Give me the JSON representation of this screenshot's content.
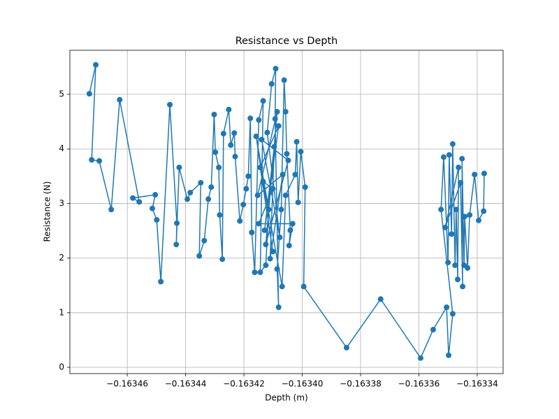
{
  "chart_data": {
    "type": "line",
    "title": "Resistance vs Depth",
    "x_label": "Depth (m)",
    "y_label": "Resistance (N)",
    "color": "#1f77b4",
    "marker": "o",
    "grid": true,
    "xlim": [
      -0.16347968,
      -0.16333112
    ],
    "ylim": [
      -0.115,
      5.806
    ],
    "xticks": [
      {
        "value": -0.16346,
        "label": "−0.16346"
      },
      {
        "value": -0.16344,
        "label": "−0.16344"
      },
      {
        "value": -0.16342,
        "label": "−0.16342"
      },
      {
        "value": -0.1634,
        "label": "−0.16340"
      },
      {
        "value": -0.16338,
        "label": "−0.16338"
      },
      {
        "value": -0.16336,
        "label": "−0.16336"
      },
      {
        "value": -0.16334,
        "label": "−0.16334"
      }
    ],
    "yticks": [
      0,
      1,
      2,
      3,
      4,
      5
    ],
    "x": [
      -0.163473,
      -0.1634708,
      -0.1634722,
      -0.1634696,
      -0.1634655,
      -0.1634626,
      -0.1634559,
      -0.1634581,
      -0.1634504,
      -0.1634514,
      -0.1634499,
      -0.1634485,
      -0.1634454,
      -0.163443,
      -0.1634432,
      -0.1634422,
      -0.1634394,
      -0.1634384,
      -0.1634348,
      -0.1634353,
      -0.1634336,
      -0.1634322,
      -0.1634312,
      -0.1634302,
      -0.1634298,
      -0.1634286,
      -0.1634283,
      -0.1634274,
      -0.163427,
      -0.1634252,
      -0.1634245,
      -0.1634233,
      -0.163423,
      -0.1634214,
      -0.1634202,
      -0.1634192,
      -0.1634185,
      -0.1634178,
      -0.1634173,
      -0.1634163,
      -0.1634149,
      -0.1634134,
      -0.1634144,
      -0.1634125,
      -0.1634115,
      -0.1634158,
      -0.1634101,
      -0.1634144,
      -0.1634081,
      -0.1634129,
      -0.1634096,
      -0.163411,
      -0.1634067,
      -0.1634153,
      -0.1634086,
      -0.1634125,
      -0.1634048,
      -0.1634139,
      -0.1634077,
      -0.163412,
      -0.1634105,
      -0.1634091,
      -0.1634093,
      -0.1634081,
      -0.1634086,
      -0.1634072,
      -0.1634062,
      -0.1634057,
      -0.1634053,
      -0.1634041,
      -0.1634045,
      -0.1634033,
      -0.1634149,
      -0.1634101,
      -0.1634134,
      -0.1634069,
      -0.1634057,
      -0.1634024,
      -0.1634019,
      -0.1634014,
      -0.1634005,
      -0.163399,
      -0.1633995,
      -0.1633848,
      -0.1633731,
      -0.1633594,
      -0.1633551,
      -0.1633505,
      -0.1633498,
      -0.1633484,
      -0.1633524,
      -0.1633515,
      -0.16335,
      -0.1633496,
      -0.1633488,
      -0.1633484,
      -0.1633476,
      -0.1633472,
      -0.1633467,
      -0.1633464,
      -0.163351,
      -0.1633457,
      -0.163345,
      -0.1633452,
      -0.1633445,
      -0.1633443,
      -0.1633433,
      -0.1633426,
      -0.1633409,
      -0.1633395,
      -0.1633378,
      -0.1633376
    ],
    "values": [
      5.01,
      5.54,
      3.8,
      3.78,
      2.89,
      4.9,
      3.03,
      3.1,
      3.16,
      2.91,
      2.7,
      1.57,
      4.81,
      2.64,
      2.25,
      3.66,
      3.08,
      3.2,
      3.38,
      2.04,
      2.32,
      3.08,
      3.3,
      4.63,
      3.94,
      3.66,
      2.79,
      1.98,
      4.28,
      4.72,
      4.07,
      4.29,
      3.86,
      2.68,
      2.98,
      3.27,
      3.5,
      4.56,
      2.47,
      1.74,
      4.53,
      4.88,
      1.74,
      1.87,
      2.89,
      4.23,
      2.12,
      3.66,
      4.42,
      2.51,
      4.04,
      1.99,
      3.53,
      3.15,
      4.68,
      2.25,
      3.79,
      4.17,
      2.38,
      4.3,
      5.19,
      5.47,
      4.55,
      1.1,
      1.8,
      2.89,
      5.26,
      4.68,
      3.91,
      2.51,
      2.23,
      2.63,
      2.63,
      3.27,
      3.4,
      1.48,
      3.15,
      3.53,
      4.13,
      3.02,
      3.95,
      3.3,
      1.48,
      0.36,
      1.25,
      0.17,
      0.69,
      1.1,
      0.22,
      0.98,
      2.89,
      3.85,
      1.92,
      3.89,
      2.44,
      4.09,
      1.87,
      2.89,
      1.61,
      3.66,
      2.56,
      3.38,
      1.48,
      3.82,
      1.87,
      2.76,
      1.82,
      2.79,
      3.53,
      2.69,
      2.86,
      3.55
    ]
  }
}
